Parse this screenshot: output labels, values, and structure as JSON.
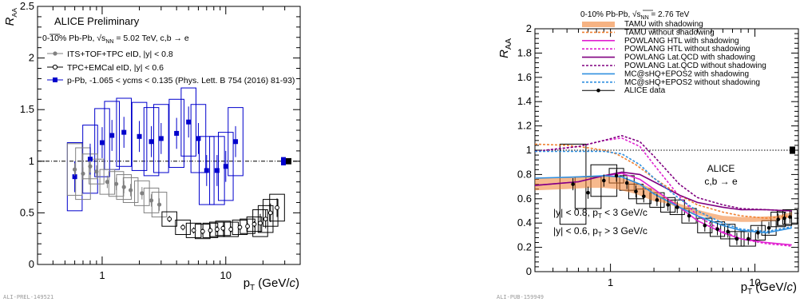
{
  "chart_data": [
    {
      "type": "scatter",
      "title": "ALICE Preliminary",
      "subtitle": "0-10% Pb-Pb, √sNN = 5.02 TeV, c,b → e",
      "xlabel": "pT (GeV/c)",
      "ylabel": "RAA",
      "xscale": "log",
      "xlim": [
        0.3,
        40
      ],
      "ylim": [
        0,
        2.5
      ],
      "xticklabels": [
        "1",
        "10"
      ],
      "yticklabels": [
        "0",
        "0.5",
        "1",
        "1.5",
        "2",
        "2.5"
      ],
      "legend_placement": "top-left",
      "id_label": "ALI-PREL-149521",
      "reference_line": 1,
      "series": [
        {
          "name": "ITS+TOF+TPC eID, |y| < 0.8",
          "color": "#808080",
          "marker": "circle-filled",
          "points": [
            [
              0.6,
              0.92
            ],
            [
              0.7,
              0.88
            ],
            [
              0.8,
              0.95
            ],
            [
              0.9,
              0.9
            ],
            [
              1.1,
              0.8
            ],
            [
              1.3,
              0.78
            ],
            [
              1.5,
              0.75
            ],
            [
              1.7,
              0.72
            ],
            [
              2.1,
              0.69
            ],
            [
              2.5,
              0.62
            ],
            [
              2.9,
              0.58
            ]
          ]
        },
        {
          "name": "TPC+EMCal eID, |y| < 0.6",
          "color": "#000000",
          "marker": "circle-open",
          "points": [
            [
              3.5,
              0.44
            ],
            [
              4.5,
              0.36
            ],
            [
              5.5,
              0.33
            ],
            [
              6.5,
              0.32
            ],
            [
              7.5,
              0.33
            ],
            [
              8.5,
              0.34
            ],
            [
              9.5,
              0.35
            ],
            [
              11,
              0.34
            ],
            [
              13,
              0.36
            ],
            [
              15,
              0.37
            ],
            [
              17,
              0.39
            ],
            [
              19,
              0.4
            ],
            [
              21,
              0.44
            ],
            [
              23,
              0.5
            ],
            [
              26,
              0.55
            ]
          ]
        },
        {
          "name": "p-Pb, -1.065 < ycms < 0.135 (Phys. Lett. B 754 (2016) 81-93)",
          "color": "#0000cc",
          "marker": "square-filled",
          "points": [
            [
              0.6,
              0.85
            ],
            [
              0.8,
              1.02
            ],
            [
              1.0,
              1.18
            ],
            [
              1.2,
              1.25
            ],
            [
              1.5,
              1.28
            ],
            [
              2.0,
              1.24
            ],
            [
              2.5,
              1.19
            ],
            [
              3.0,
              1.22
            ],
            [
              4.0,
              1.27
            ],
            [
              5.0,
              1.38
            ],
            [
              6.0,
              1.22
            ],
            [
              7.0,
              0.91
            ],
            [
              8.5,
              0.91
            ],
            [
              10.0,
              0.95
            ],
            [
              12,
              1.19
            ]
          ]
        }
      ],
      "annotations": []
    },
    {
      "type": "line",
      "title": "",
      "subtitle": "0-10% Pb-Pb, √sNN = 2.76 TeV",
      "xlabel": "pT (GeV/c)",
      "ylabel": "RAA",
      "xscale": "log",
      "xlim": [
        0.3,
        20
      ],
      "ylim": [
        0,
        2
      ],
      "xticklabels": [
        "1",
        "10"
      ],
      "yticklabels": [
        "0",
        "0.2",
        "0.4",
        "0.6",
        "0.8",
        "1",
        "1.2",
        "1.4",
        "1.6",
        "1.8",
        "2"
      ],
      "legend_placement": "top-center",
      "id_label": "ALI-PUB-159949",
      "reference_line": 1,
      "annotations": [
        "ALICE",
        "c,b → e",
        "|y| < 0.8, pT < 3 GeV/c",
        "|y| < 0.6, pT > 3 GeV/c"
      ],
      "series": [
        {
          "name": "TAMU with shadowing",
          "color": "#f08030",
          "style": "band",
          "points": [
            [
              0.3,
              0.72
            ],
            [
              0.5,
              0.73
            ],
            [
              0.7,
              0.74
            ],
            [
              0.9,
              0.74
            ],
            [
              1.1,
              0.73
            ],
            [
              1.5,
              0.69
            ],
            [
              2,
              0.63
            ],
            [
              2.5,
              0.58
            ],
            [
              3,
              0.54
            ],
            [
              4,
              0.49
            ],
            [
              5,
              0.46
            ],
            [
              6,
              0.44
            ],
            [
              8,
              0.43
            ],
            [
              10,
              0.43
            ],
            [
              14,
              0.44
            ],
            [
              18,
              0.47
            ]
          ]
        },
        {
          "name": "TAMU without shadowing",
          "color": "#f08030",
          "style": "dashed",
          "points": [
            [
              0.3,
              1.05
            ],
            [
              0.5,
              1.04
            ],
            [
              0.7,
              1.02
            ],
            [
              0.9,
              1.0
            ],
            [
              1.1,
              0.97
            ],
            [
              1.5,
              0.88
            ],
            [
              2,
              0.77
            ],
            [
              3,
              0.63
            ],
            [
              4,
              0.55
            ],
            [
              6,
              0.49
            ],
            [
              8,
              0.46
            ],
            [
              12,
              0.44
            ],
            [
              18,
              0.46
            ]
          ]
        },
        {
          "name": "POWLANG HTL with shadowing",
          "color": "#e020d0",
          "style": "solid",
          "points": [
            [
              0.3,
              0.71
            ],
            [
              0.6,
              0.74
            ],
            [
              0.9,
              0.79
            ],
            [
              1.2,
              0.81
            ],
            [
              1.6,
              0.76
            ],
            [
              2,
              0.68
            ],
            [
              3,
              0.53
            ],
            [
              4,
              0.42
            ],
            [
              6,
              0.32
            ],
            [
              8,
              0.27
            ],
            [
              12,
              0.24
            ],
            [
              18,
              0.22
            ]
          ]
        },
        {
          "name": "POWLANG HTL without shadowing",
          "color": "#e020d0",
          "style": "dashed",
          "points": [
            [
              0.3,
              0.99
            ],
            [
              0.6,
              1.03
            ],
            [
              0.9,
              1.08
            ],
            [
              1.2,
              1.1
            ],
            [
              1.6,
              1.03
            ],
            [
              2,
              0.88
            ],
            [
              3,
              0.62
            ],
            [
              4,
              0.46
            ],
            [
              6,
              0.33
            ],
            [
              8,
              0.27
            ],
            [
              12,
              0.23
            ],
            [
              18,
              0.21
            ]
          ]
        },
        {
          "name": "POWLANG Lat.QCD with shadowing",
          "color": "#800080",
          "style": "solid",
          "points": [
            [
              0.3,
              0.71
            ],
            [
              0.6,
              0.74
            ],
            [
              0.9,
              0.79
            ],
            [
              1.2,
              0.82
            ],
            [
              1.6,
              0.8
            ],
            [
              2,
              0.74
            ],
            [
              3,
              0.63
            ],
            [
              4,
              0.57
            ],
            [
              6,
              0.53
            ],
            [
              8,
              0.51
            ],
            [
              12,
              0.51
            ],
            [
              18,
              0.5
            ]
          ]
        },
        {
          "name": "POWLANG Lat.QCD without shadowing",
          "color": "#800080",
          "style": "dashed",
          "points": [
            [
              0.3,
              0.99
            ],
            [
              0.6,
              1.03
            ],
            [
              0.9,
              1.08
            ],
            [
              1.2,
              1.12
            ],
            [
              1.6,
              1.07
            ],
            [
              2,
              0.95
            ],
            [
              3,
              0.72
            ],
            [
              4,
              0.61
            ],
            [
              6,
              0.55
            ],
            [
              8,
              0.52
            ],
            [
              12,
              0.51
            ],
            [
              18,
              0.5
            ]
          ]
        },
        {
          "name": "MC@sHQ+EPOS2 with shadowing",
          "color": "#3090e0",
          "style": "solid",
          "points": [
            [
              0.3,
              0.77
            ],
            [
              0.6,
              0.78
            ],
            [
              0.9,
              0.79
            ],
            [
              1.2,
              0.78
            ],
            [
              1.6,
              0.72
            ],
            [
              2,
              0.64
            ],
            [
              3,
              0.53
            ],
            [
              4,
              0.46
            ],
            [
              6,
              0.38
            ],
            [
              8,
              0.34
            ],
            [
              12,
              0.32
            ],
            [
              18,
              0.36
            ]
          ]
        },
        {
          "name": "MC@sHQ+EPOS2 without shadowing",
          "color": "#3090e0",
          "style": "dashed",
          "points": [
            [
              0.3,
              0.99
            ],
            [
              0.6,
              0.99
            ],
            [
              0.9,
              0.99
            ],
            [
              1.2,
              0.97
            ],
            [
              1.6,
              0.88
            ],
            [
              2,
              0.77
            ],
            [
              3,
              0.6
            ],
            [
              4,
              0.5
            ],
            [
              6,
              0.4
            ],
            [
              8,
              0.35
            ],
            [
              12,
              0.33
            ],
            [
              18,
              0.37
            ]
          ]
        },
        {
          "name": "ALICE data",
          "color": "#000000",
          "style": "points",
          "points": [
            [
              0.55,
              0.72
            ],
            [
              0.7,
              0.65
            ],
            [
              0.9,
              0.75
            ],
            [
              1.1,
              0.79
            ],
            [
              1.3,
              0.73
            ],
            [
              1.5,
              0.66
            ],
            [
              1.7,
              0.62
            ],
            [
              2.1,
              0.59
            ],
            [
              2.5,
              0.55
            ],
            [
              2.9,
              0.53
            ],
            [
              3.5,
              0.46
            ],
            [
              4.5,
              0.38
            ],
            [
              5.5,
              0.35
            ],
            [
              6.5,
              0.33
            ],
            [
              7.5,
              0.27
            ],
            [
              9,
              0.27
            ],
            [
              10.5,
              0.32
            ],
            [
              12.5,
              0.36
            ],
            [
              14.5,
              0.43
            ],
            [
              16,
              0.44
            ],
            [
              17.5,
              0.45
            ]
          ]
        }
      ]
    }
  ]
}
